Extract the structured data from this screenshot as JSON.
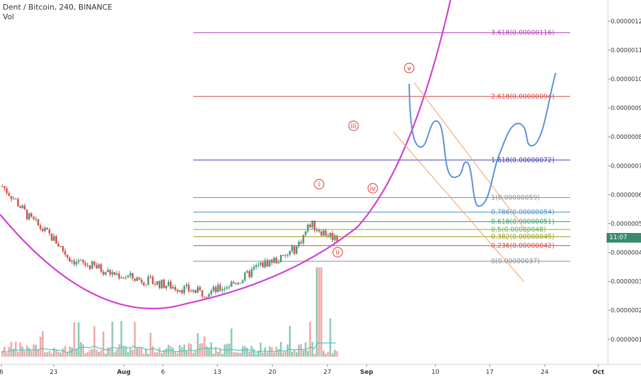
{
  "legend": {
    "title": "Dent / Bitcoin, 240, BINANCE",
    "sub": "Vol"
  },
  "price_tag": "11:07",
  "colors": {
    "up": "#4a9a7c",
    "down": "#d9534f",
    "arc": "#d13fd1",
    "forecast": "#5b8fd9",
    "channel": "#f0a060",
    "wave": "#e0302c",
    "volume_up": "#8fc9b5",
    "volume_down": "#f0a9a6",
    "volume_ma": "#45c9c0"
  },
  "chart_data": {
    "type": "candlestick",
    "x_labels": [
      "6",
      "23",
      "Aug",
      "6",
      "13",
      "20",
      "27",
      "Sep",
      "10",
      "17",
      "24",
      "Oct"
    ],
    "y_labels": [
      "0.00000120",
      "0.00000110",
      "0.00000100",
      "0.00000090",
      "0.00000080",
      "0.00000070",
      "0.00000060",
      "0.00000050",
      "0.00000040",
      "0.00000030",
      "0.00000020",
      "0.00000010"
    ],
    "price_range": [
      4e-08,
      1.24e-06
    ],
    "price_path": [
      6.3e-07,
      5.8e-07,
      5.2e-07,
      4.8e-07,
      4.4e-07,
      3.8e-07,
      3.6e-07,
      3.5e-07,
      3.3e-07,
      3.2e-07,
      3.1e-07,
      3e-07,
      2.9e-07,
      2.8e-07,
      2.7e-07,
      2.6e-07,
      2.7e-07,
      2.9e-07,
      3.1e-07,
      3.5e-07,
      3.7e-07,
      3.8e-07,
      4.2e-07,
      5e-07,
      4.7e-07,
      4.5e-07
    ],
    "volume_spike_at": 0.94,
    "fib_levels": [
      {
        "ratio": "3.618",
        "label": "3.618(0.00000116)",
        "price": 1.16e-06,
        "color": "#b341b3"
      },
      {
        "ratio": "2.618",
        "label": "2.618(0.00000094)",
        "price": 9.4e-07,
        "color": "#d6453d"
      },
      {
        "ratio": "1.618",
        "label": "1.618(0.00000072)",
        "price": 7.2e-07,
        "color": "#3c3cb0"
      },
      {
        "ratio": "1",
        "label": "1(0.00000059)",
        "price": 5.9e-07,
        "color": "#8a8a8a"
      },
      {
        "ratio": "0.786",
        "label": "0.786(0.00000054)",
        "price": 5.4e-07,
        "color": "#4a90c8"
      },
      {
        "ratio": "0.618",
        "label": "0.618(0.00000051)",
        "price": 5.07e-07,
        "color": "#2e9e6e"
      },
      {
        "ratio": "0.5",
        "label": "0.5(0.00000048)",
        "price": 4.8e-07,
        "color": "#6ab04c"
      },
      {
        "ratio": "0.382",
        "label": "0.382(0.00000045)",
        "price": 4.55e-07,
        "color": "#9a9a20"
      },
      {
        "ratio": "0.236",
        "label": "0.236(0.00000042)",
        "price": 4.24e-07,
        "color": "#d6453d"
      },
      {
        "ratio": "0",
        "label": "0(0.00000037)",
        "price": 3.7e-07,
        "color": "#8a8a8a"
      }
    ],
    "wave_labels": [
      "i",
      "ii",
      "iii",
      "iv",
      "v"
    ]
  }
}
